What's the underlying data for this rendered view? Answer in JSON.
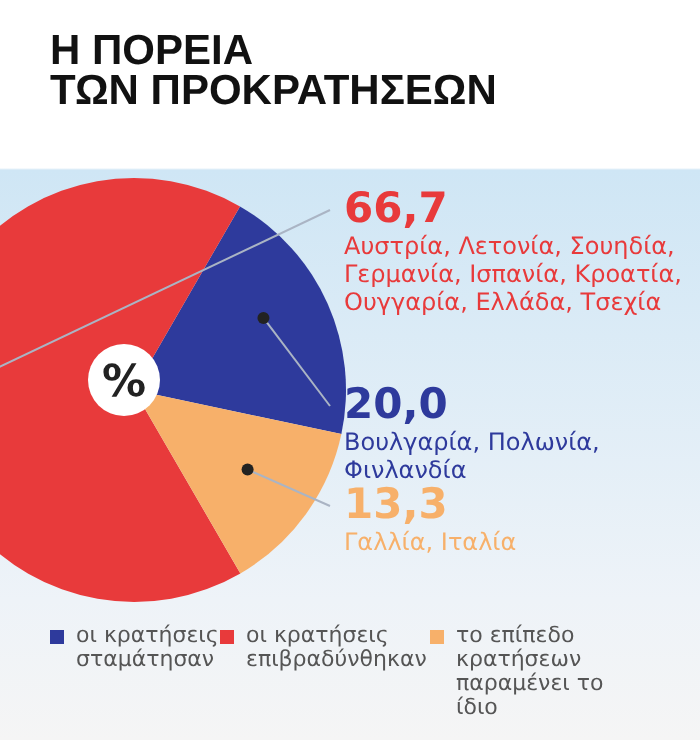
{
  "chart_data": {
    "type": "pie",
    "title": "Η ΠΟΡΕΙΑ\nΤΩΝ ΠΡΟΚΡΑΤΗΣΕΩΝ",
    "categories": [
      "οι κρατήσεις σταμάτησαν",
      "οι κρατήσεις επιβραδύνθηκαν",
      "το επίπεδο κρατήσεων παραμένει το ίδιο"
    ],
    "values": [
      20.0,
      66.7,
      13.3
    ],
    "colors": [
      "#2e3a9c",
      "#e83a3b",
      "#f7b06a"
    ],
    "value_labels": [
      "20,0",
      "66,7",
      "13,3"
    ],
    "annotations": [
      "Βουλγαρία, Πολωνία, Φινλανδία",
      "Αυστρία, Λετονία, Σουηδία, Γερμανία, Ισπανία, Κροατία, Ουγγαρία, Ελλάδα, Τσεχία",
      "Γαλλία, Ιταλία",
      "%"
    ],
    "legend": "bottom"
  }
}
